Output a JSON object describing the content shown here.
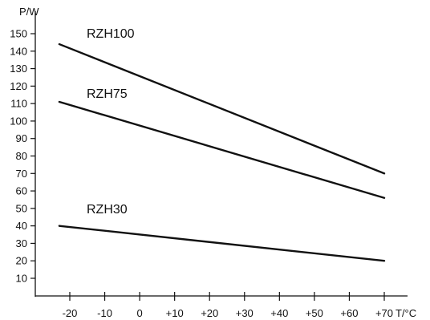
{
  "chart_data": {
    "type": "line",
    "title": "",
    "xlabel": "T/°C",
    "ylabel": "P/W",
    "xlim": [
      -25,
      75
    ],
    "ylim": [
      0,
      156
    ],
    "grid": false,
    "legend": "none",
    "x_ticks": [
      -20,
      -10,
      0,
      10,
      20,
      30,
      40,
      50,
      60,
      70
    ],
    "x_tick_labels": [
      "-20",
      "-10",
      "0",
      "+10",
      "+20",
      "+30",
      "+40",
      "+50",
      "+60",
      "+70"
    ],
    "y_ticks": [
      10,
      20,
      30,
      40,
      50,
      60,
      70,
      80,
      90,
      100,
      110,
      120,
      130,
      140,
      150
    ],
    "y_tick_labels": [
      "10",
      "20",
      "30",
      "40",
      "50",
      "60",
      "70",
      "80",
      "90",
      "100",
      "110",
      "120",
      "130",
      "140",
      "150"
    ],
    "series": [
      {
        "name": "RZH100",
        "x": [
          -23,
          70
        ],
        "y": [
          144,
          70
        ]
      },
      {
        "name": "RZH75",
        "x": [
          -23,
          70
        ],
        "y": [
          111,
          56
        ]
      },
      {
        "name": "RZH30",
        "x": [
          -23,
          70
        ],
        "y": [
          40,
          20
        ]
      }
    ],
    "line_color": "#111111"
  }
}
